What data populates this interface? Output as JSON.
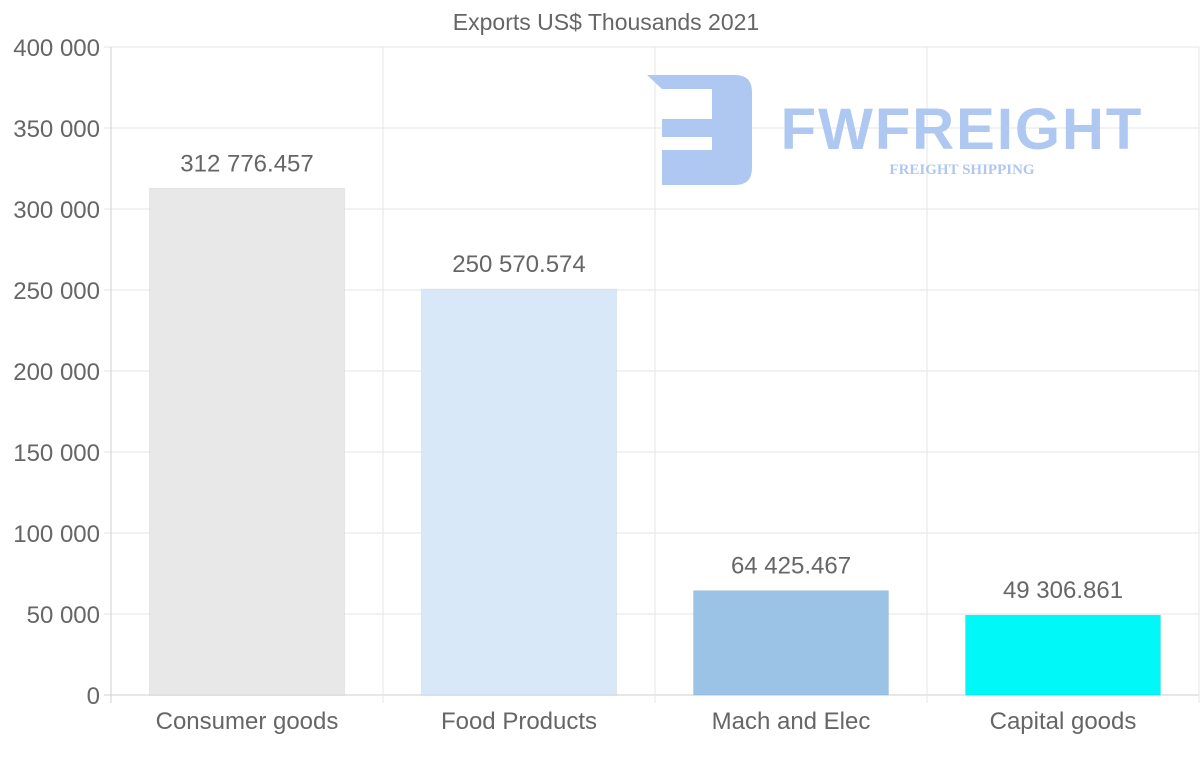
{
  "chart_data": {
    "type": "bar",
    "title": "Exports US$ Thousands 2021",
    "xlabel": "",
    "ylabel": "",
    "categories": [
      "Consumer goods",
      "Food Products",
      "Mach and Elec",
      "Capital goods"
    ],
    "values": [
      312776.457,
      250570.574,
      64425.467,
      49306.861
    ],
    "value_labels": [
      "312 776.457",
      "250 570.574",
      "64 425.467",
      "49 306.861"
    ],
    "colors": [
      "#e8e8e8",
      "#d9e8f8",
      "#9ac3e6",
      "#00f8f8"
    ],
    "ylim": [
      0,
      400000
    ],
    "yticks": [
      0,
      50000,
      100000,
      150000,
      200000,
      250000,
      300000,
      350000,
      400000
    ],
    "ytick_labels": [
      "0",
      "50 000",
      "100 000",
      "150 000",
      "200 000",
      "250 000",
      "300 000",
      "350 000",
      "400 000"
    ],
    "grid": true,
    "legend": "none"
  },
  "watermark": {
    "brand": "FWFREIGHT",
    "tagline": "FREIGHT SHIPPING",
    "color": "#aec8f2"
  }
}
